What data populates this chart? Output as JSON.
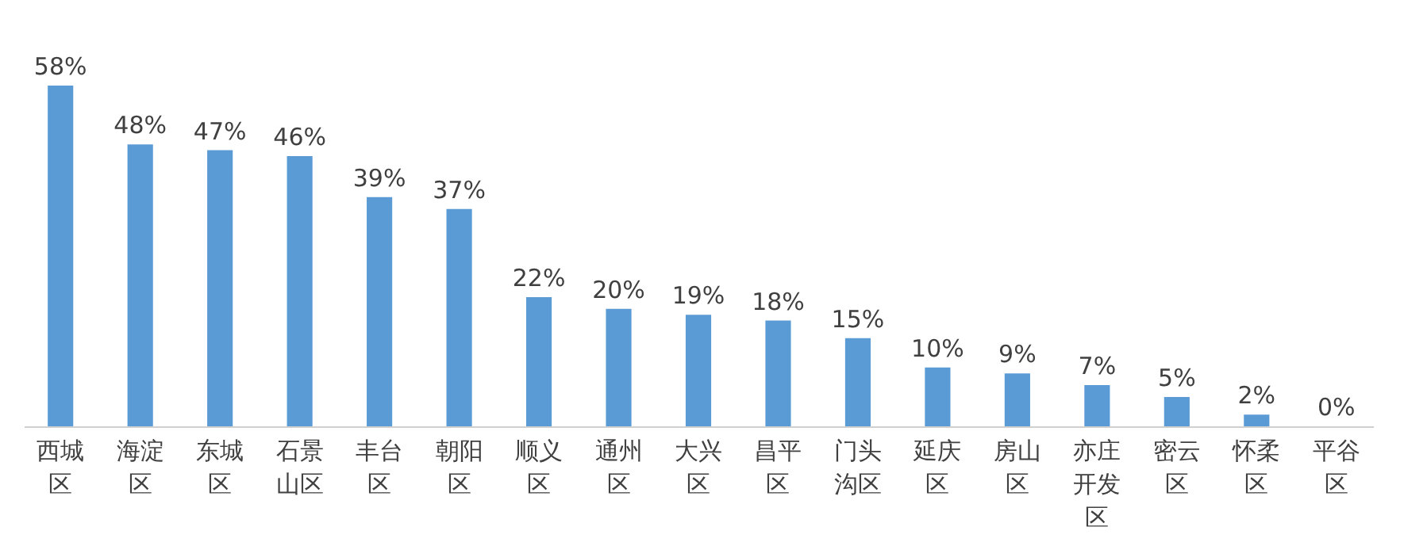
{
  "chart_data": {
    "type": "bar",
    "categories": [
      "西城区",
      "海淀区",
      "东城区",
      "石景山区",
      "丰台区",
      "朝阳区",
      "顺义区",
      "通州区",
      "大兴区",
      "昌平区",
      "门头沟区",
      "延庆区",
      "房山区",
      "亦庄开发区",
      "密云区",
      "怀柔区",
      "平谷区"
    ],
    "values": [
      58,
      48,
      47,
      46,
      39,
      37,
      22,
      20,
      19,
      18,
      15,
      10,
      9,
      7,
      5,
      2,
      0
    ],
    "value_labels": [
      "58%",
      "48%",
      "47%",
      "46%",
      "39%",
      "37%",
      "22%",
      "20%",
      "19%",
      "18%",
      "15%",
      "10%",
      "9%",
      "7%",
      "5%",
      "2%",
      "0%"
    ],
    "color": "#5b9bd5"
  }
}
